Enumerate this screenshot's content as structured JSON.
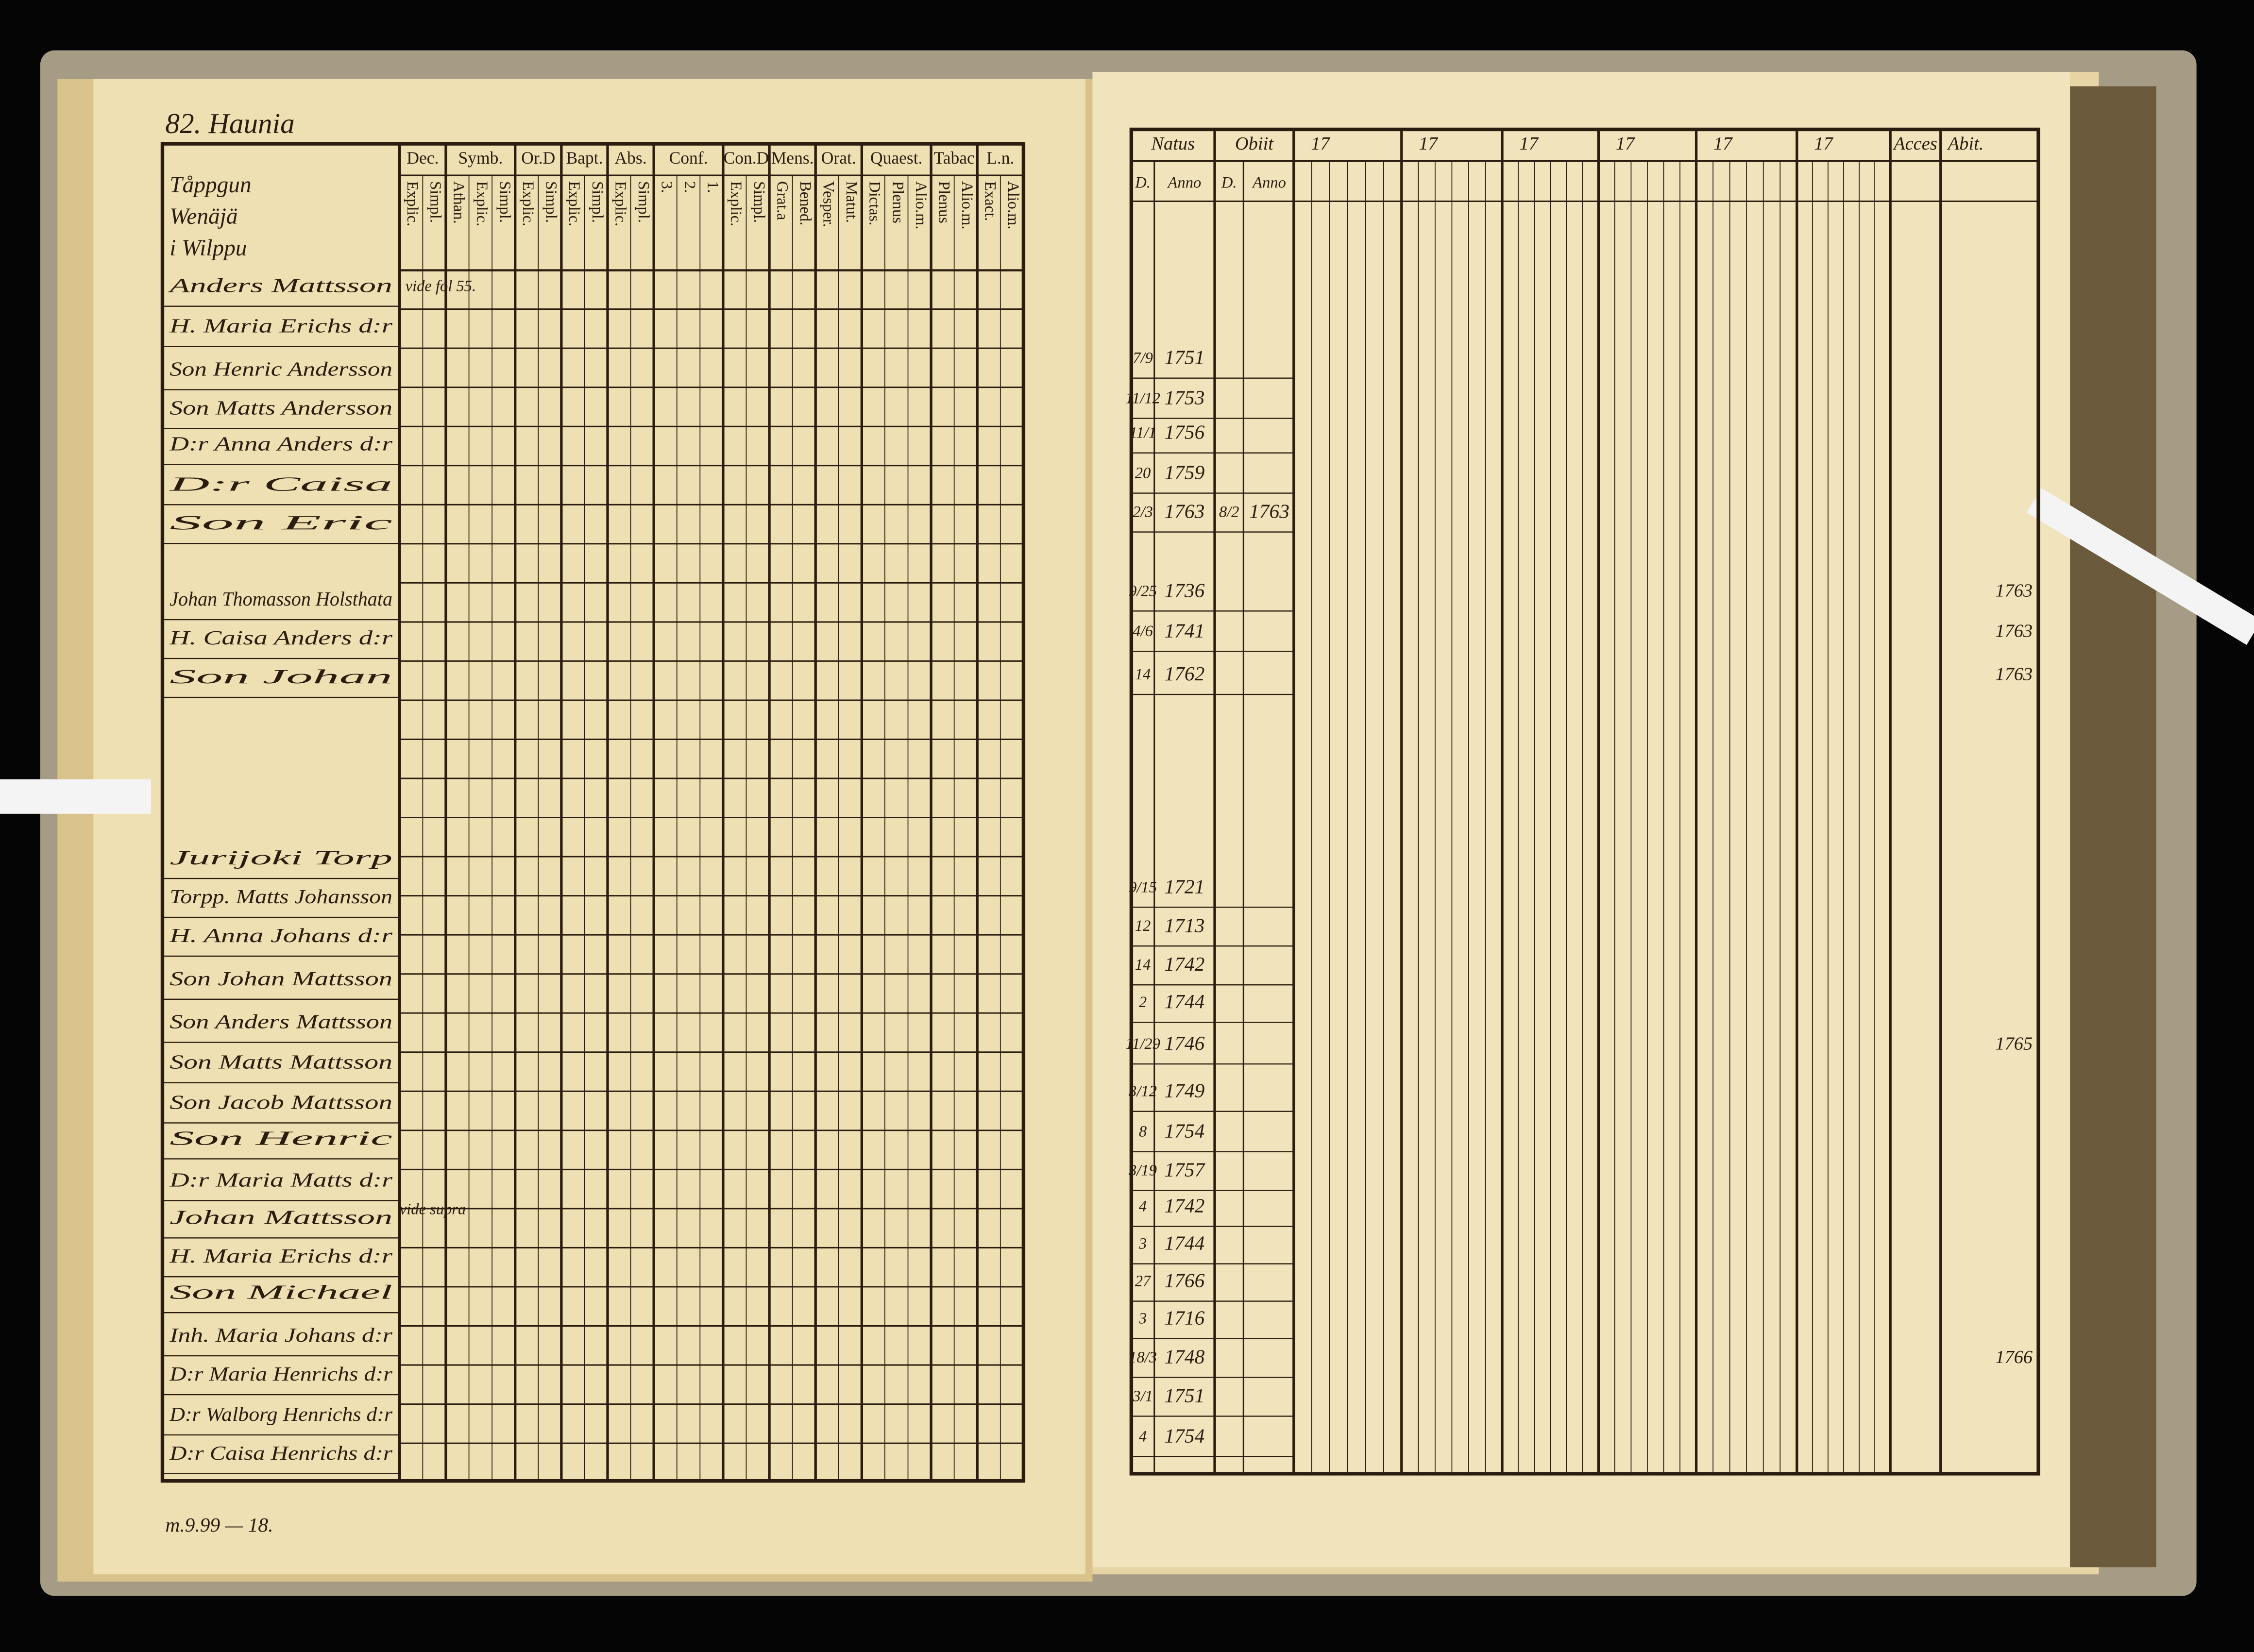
{
  "left_page": {
    "title": "82. Haunia",
    "columns": [
      {
        "head": "Dec.",
        "sub": [
          "Explic.",
          "Simpl."
        ]
      },
      {
        "head": "Symb.",
        "sub": [
          "Athan.",
          "Explic.",
          "Simpl."
        ]
      },
      {
        "head": "Or.D",
        "sub": [
          "Explic.",
          "Simpl."
        ]
      },
      {
        "head": "Bapt.",
        "sub": [
          "Explic.",
          "Simpl."
        ]
      },
      {
        "head": "Abs.",
        "sub": [
          "Explic.",
          "Simpl."
        ]
      },
      {
        "head": "Conf.",
        "sub": [
          "3.",
          "2.",
          "1."
        ]
      },
      {
        "head": "Con.D",
        "sub": [
          "Explic.",
          "Simpl."
        ]
      },
      {
        "head": "Mens.",
        "sub": [
          "Grat.a",
          "Bened."
        ]
      },
      {
        "head": "Orat.",
        "sub": [
          "Vesper.",
          "Matut."
        ]
      },
      {
        "head": "Quaest.",
        "sub": [
          "Dictas.",
          "Plenus",
          "Alio.m."
        ]
      },
      {
        "head": "Tabac",
        "sub": [
          "Plenus",
          "Alio.m."
        ]
      },
      {
        "head": "L.n.",
        "sub": [
          "Exact.",
          "Alio.m."
        ]
      }
    ],
    "header_lines": [
      "Tåppgun",
      "Wenäjä",
      "i Wilppu"
    ],
    "rows": [
      {
        "name": "Anders Mattsson",
        "note": "vide fol 55."
      },
      {
        "name": "H. Maria Erichs d:r"
      },
      {
        "name": "Son Henric Andersson"
      },
      {
        "name": "Son Matts Andersson"
      },
      {
        "name": "D:r Anna Anders d:r"
      },
      {
        "name": "D:r Caisa"
      },
      {
        "name": "Son Eric"
      },
      {
        "name": "Johan Thomasson Holsthata"
      },
      {
        "name": "H. Caisa Anders d:r"
      },
      {
        "name": "Son Johan"
      },
      {
        "name": "Jurijoki Torp"
      },
      {
        "name": "Torpp. Matts Johansson"
      },
      {
        "name": "H. Anna Johans d:r"
      },
      {
        "name": "Son Johan Mattsson"
      },
      {
        "name": "Son Anders Mattsson"
      },
      {
        "name": "Son Matts Mattsson"
      },
      {
        "name": "Son Jacob Mattsson"
      },
      {
        "name": "Son Henric"
      },
      {
        "name": "D:r Maria Matts d:r"
      },
      {
        "name": "Johan Mattsson",
        "note": "vide supra"
      },
      {
        "name": "H. Maria Erichs d:r"
      },
      {
        "name": "Son Michael"
      },
      {
        "name": "Inh. Maria Johans d:r"
      },
      {
        "name": "D:r Maria Henrichs d:r"
      },
      {
        "name": "D:r Walborg Henrichs d:r"
      },
      {
        "name": "D:r Caisa Henrichs d:r"
      }
    ],
    "footer": "m.9.99 — 18."
  },
  "right_page": {
    "columns": [
      "Natus",
      "Obiit",
      "17",
      "17",
      "17",
      "17",
      "17",
      "17",
      "Acces",
      "Abit."
    ],
    "subcolumns": [
      "D.",
      "Anno",
      "D.",
      "Anno"
    ],
    "rows": [
      {
        "day": "7/9",
        "year": "1751"
      },
      {
        "day": "11/12",
        "year": "1753"
      },
      {
        "day": "11/1",
        "year": "1756"
      },
      {
        "day": "20",
        "year": "1759"
      },
      {
        "day": "2/3",
        "year": "1763",
        "death_day": "8/2",
        "death_year": "1763"
      },
      {
        "day": "9/25",
        "year": "1736",
        "abit": "1763"
      },
      {
        "day": "4/6",
        "year": "1741",
        "abit": "1763"
      },
      {
        "day": "14",
        "year": "1762",
        "abit": "1763"
      },
      {
        "day": "9/15",
        "year": "1721"
      },
      {
        "day": "12",
        "year": "1713"
      },
      {
        "day": "14",
        "year": "1742"
      },
      {
        "day": "2",
        "year": "1744"
      },
      {
        "day": "11/29",
        "year": "1746",
        "abit": "1765"
      },
      {
        "day": "3/12",
        "year": "1749"
      },
      {
        "day": "8",
        "year": "1754"
      },
      {
        "day": "3/19",
        "year": "1757"
      },
      {
        "day": "4",
        "year": "1742"
      },
      {
        "day": "3",
        "year": "1744"
      },
      {
        "day": "27",
        "year": "1766"
      },
      {
        "day": "3",
        "year": "1716"
      },
      {
        "day": "18/3",
        "year": "1748",
        "abit": "1766"
      },
      {
        "day": "3/1",
        "year": "1751"
      },
      {
        "day": "4",
        "year": "1754"
      }
    ]
  }
}
